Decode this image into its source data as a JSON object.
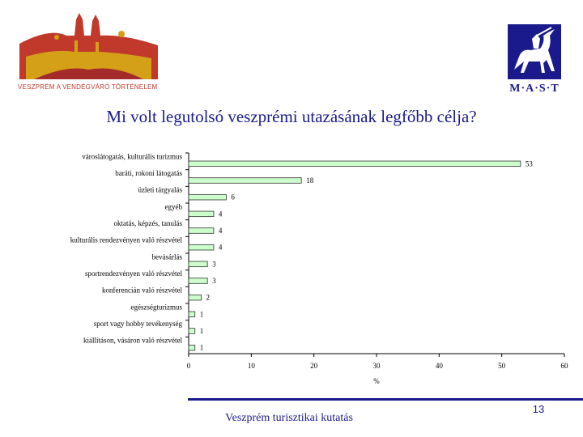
{
  "header": {
    "left_logo_caption": "VESZPRÉM A VENDÉGVÁRÓ TÖRTÉNELEM",
    "right_logo_caption": "M·A·S·T"
  },
  "colors": {
    "title": "#1a1a8c",
    "bar_fill": "#ccffcc",
    "bar_stroke": "#333333",
    "logo_red": "#c0392b",
    "logo_gold": "#d4a017",
    "logo_blue": "#1a1a8c"
  },
  "footer": {
    "text": "Veszprém turisztikai kutatás",
    "page_number": "13"
  },
  "chart_data": {
    "type": "bar",
    "orientation": "horizontal",
    "title": "Mi volt legutolsó veszprémi utazásának legfőbb célja?",
    "xlabel": "%",
    "ylabel": "",
    "xlim": [
      0,
      60
    ],
    "xticks": [
      "0",
      "10",
      "20",
      "30",
      "40",
      "50",
      "60"
    ],
    "grid": false,
    "legend": "none",
    "categories": [
      "városlátogatás, kulturális turizmus",
      "baráti, rokoni látogatás",
      "üzleti tárgyalás",
      "egyéb",
      "oktatás, képzés, tanulás",
      "kulturális rendezvényen való részvétel",
      "bevásárlás",
      "sportrendezvényen való részvétel",
      "konferencián való részvétel",
      "egészségturizmus",
      "sport vagy hobby tevékenység",
      "kiállításon, vásáron való részvétel"
    ],
    "values": [
      53,
      18,
      6,
      4,
      4,
      4,
      3,
      3,
      2,
      1,
      1,
      1
    ]
  }
}
